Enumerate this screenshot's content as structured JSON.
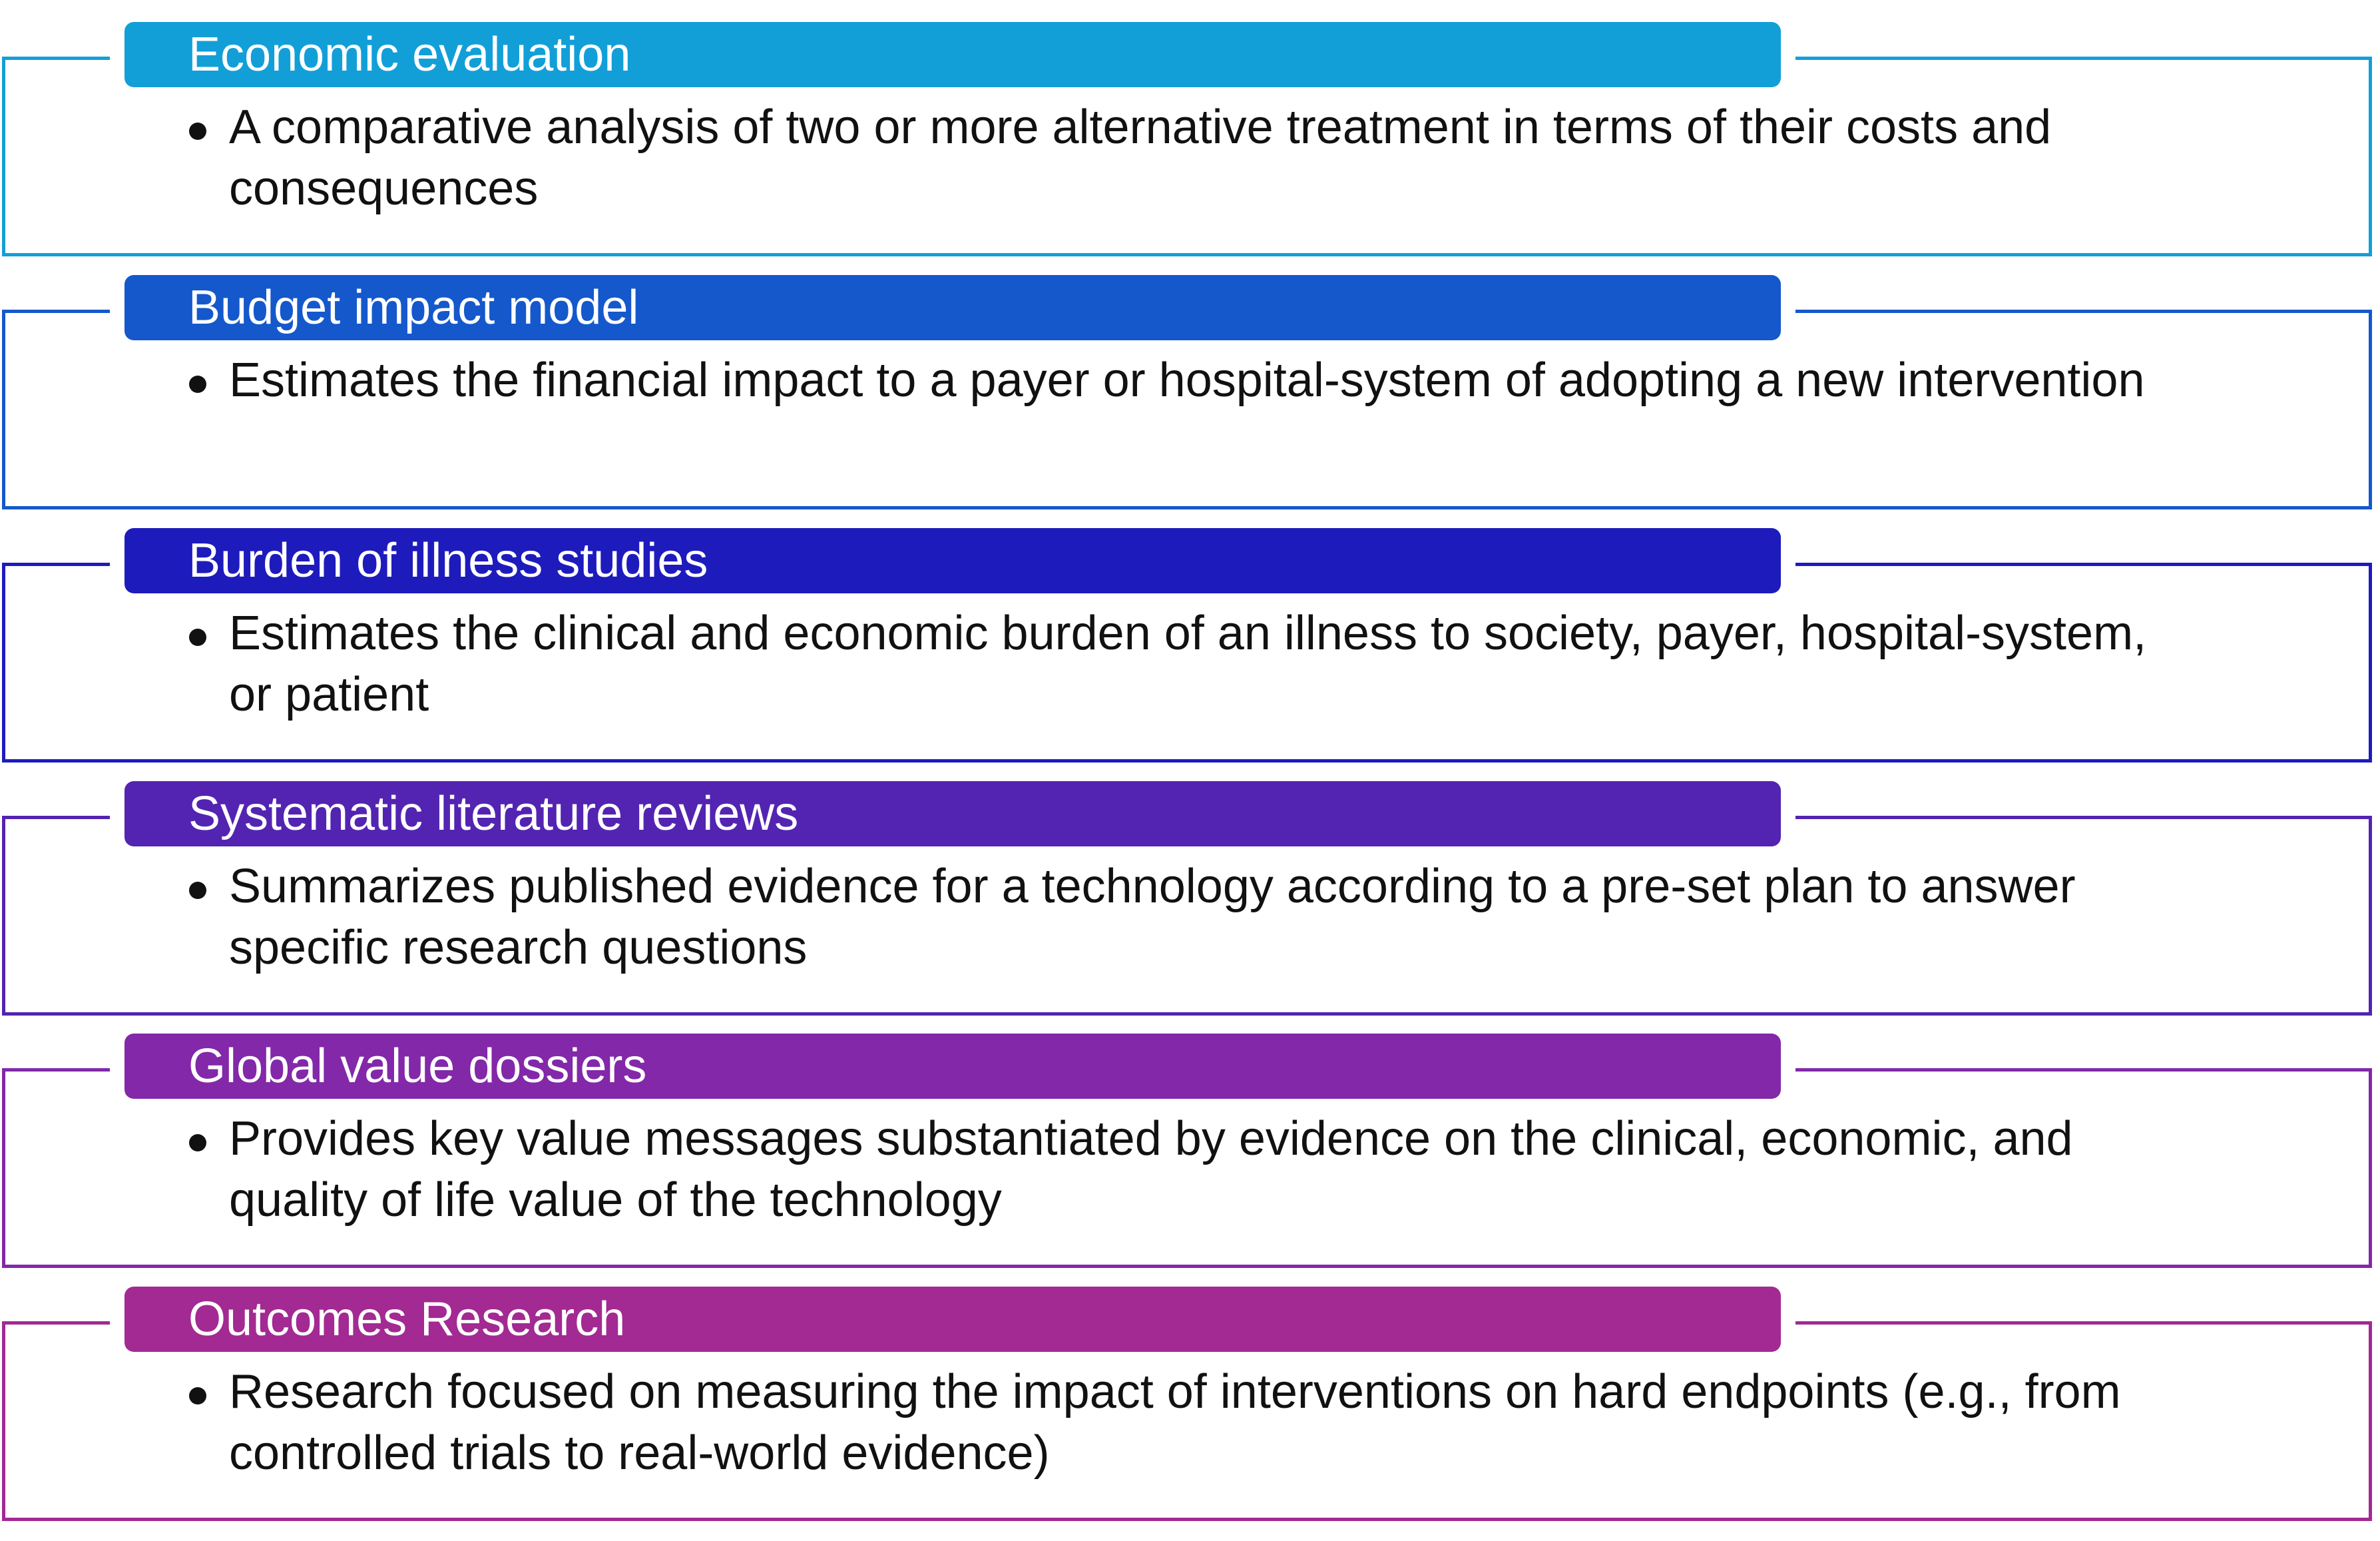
{
  "sections": [
    {
      "title": "Economic evaluation",
      "color": "#129fd8",
      "bullet": "A comparative analysis of two or more alternative treatment in terms of their costs and consequences"
    },
    {
      "title": "Budget impact model",
      "color": "#1458cc",
      "bullet": "Estimates the financial impact to a payer or hospital-system of adopting a new intervention"
    },
    {
      "title": "Burden of illness studies",
      "color": "#1e1bbd",
      "bullet": "Estimates the clinical and economic burden of an illness to society, payer, hospital-system, or patient"
    },
    {
      "title": "Systematic literature reviews",
      "color": "#5324b1",
      "bullet": "Summarizes published evidence for a technology according to a pre-set plan to answer specific research questions"
    },
    {
      "title": "Global value dossiers",
      "color": "#8228a9",
      "bullet": "Provides key value messages substantiated by evidence on the clinical, economic, and quality of life value of the technology"
    },
    {
      "title": "Outcomes Research",
      "color": "#a22a92",
      "bullet": "Research focused on measuring the impact of interventions on hard endpoints (e.g., from controlled trials to real-world evidence)"
    }
  ]
}
